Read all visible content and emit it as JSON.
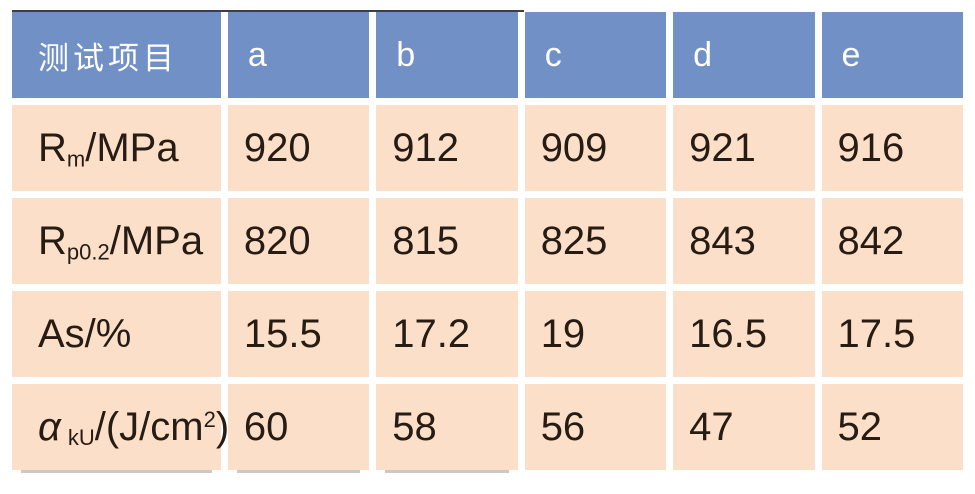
{
  "table": {
    "header": {
      "label": "测试项目",
      "columns": [
        "a",
        "b",
        "c",
        "d",
        "e"
      ]
    },
    "rows": [
      {
        "label": {
          "pre": "R",
          "sub": "m",
          "mid": "/MPa",
          "sup": "",
          "post": ""
        },
        "values": [
          "920",
          "912",
          "909",
          "921",
          "916"
        ]
      },
      {
        "label": {
          "pre": "R",
          "sub": "p0.2",
          "mid": "/MPa",
          "sup": "",
          "post": ""
        },
        "values": [
          "820",
          "815",
          "825",
          "843",
          "842"
        ]
      },
      {
        "label": {
          "pre": "As/%",
          "sub": "",
          "mid": "",
          "sup": "",
          "post": ""
        },
        "values": [
          "15.5",
          "17.2",
          "19",
          "16.5",
          "17.5"
        ]
      },
      {
        "label": {
          "pre": "α",
          "sub": "kU",
          "mid": "/(J/cm",
          "sup": "2",
          "post": ")"
        },
        "values": [
          "60",
          "58",
          "56",
          "47",
          "52"
        ]
      }
    ]
  },
  "chart_data": {
    "type": "table",
    "title": "",
    "columns": [
      "测试项目",
      "a",
      "b",
      "c",
      "d",
      "e"
    ],
    "rows": [
      {
        "item": "Rm/MPa",
        "values": [
          920,
          912,
          909,
          921,
          916
        ]
      },
      {
        "item": "Rp0.2/MPa",
        "values": [
          820,
          815,
          825,
          843,
          842
        ]
      },
      {
        "item": "As/%",
        "values": [
          15.5,
          17.2,
          19,
          16.5,
          17.5
        ]
      },
      {
        "item": "αkU/(J/cm2)",
        "values": [
          60,
          58,
          56,
          47,
          52
        ]
      }
    ]
  },
  "colors": {
    "header_bg": "#7190c5",
    "row_bg": "#fcdfc8",
    "header_text": "#ffffff",
    "body_text": "#261c14",
    "top_line": "#3b4046",
    "bottom_shadow": "#c9c9c9",
    "gutter": "#ffffff"
  }
}
